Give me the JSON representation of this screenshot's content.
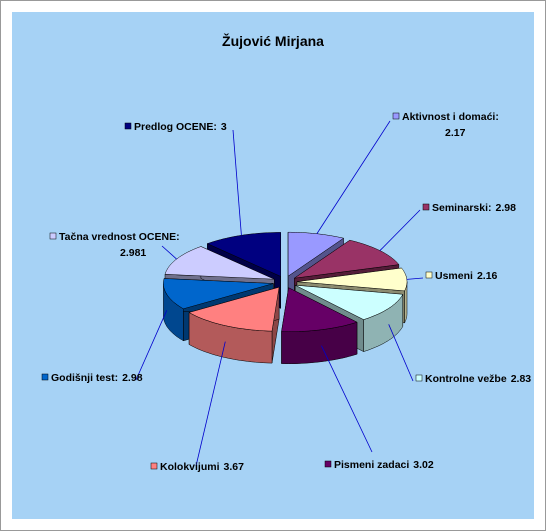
{
  "chart_data": {
    "type": "pie3d",
    "title": "Žujović Mirjana",
    "categories": [
      "Aktivnost i domaći:",
      "Seminarski:",
      "Usmeni",
      "Kontrolne vežbe",
      "Pismeni zadaci",
      "Kolokvijumi",
      "Godišnji test:",
      "Tačna vrednost OCENE:",
      "Predlog OCENE:"
    ],
    "values": [
      2.17,
      2.98,
      2.16,
      2.83,
      3.02,
      3.67,
      2.98,
      2.981,
      3
    ],
    "colors": [
      "#9999ff",
      "#993366",
      "#ffffcc",
      "#ccffff",
      "#660066",
      "#ff8080",
      "#0066cc",
      "#ccccff",
      "#000080"
    ]
  }
}
